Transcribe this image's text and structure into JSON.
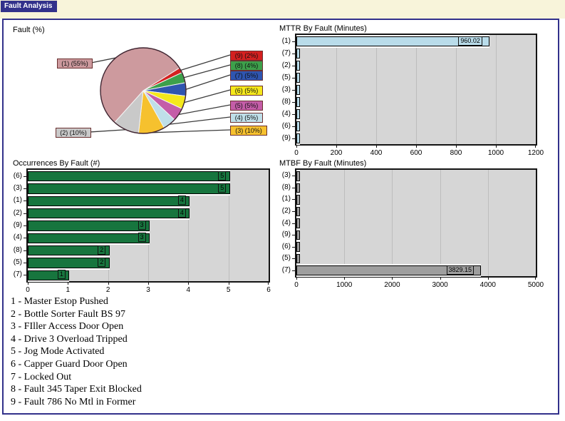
{
  "window": {
    "tab_label": "Fault Analysis"
  },
  "colors": {
    "frame_blue": "#32318b",
    "top_band": "#f8f4da",
    "plot_background": "#d6d6d6",
    "occurrence_bar_green": "#17753e",
    "mttr_bar_blue": "#b9dcea",
    "mtbf_bar_gray": "#9e9e9e"
  },
  "chart_data": [
    {
      "id": "fault-pie",
      "type": "pie",
      "title": "Fault (%)",
      "slices": [
        {
          "fault": "9",
          "label": "(9) (2%)",
          "percent": 2,
          "color": "#d42020"
        },
        {
          "fault": "8",
          "label": "(8) (4%)",
          "percent": 4,
          "color": "#3da04b"
        },
        {
          "fault": "7",
          "label": "(7) (5%)",
          "percent": 5,
          "color": "#2f55b0"
        },
        {
          "fault": "6",
          "label": "(6) (5%)",
          "percent": 5,
          "color": "#f5e81c"
        },
        {
          "fault": "5",
          "label": "(5) (5%)",
          "percent": 5,
          "color": "#c45da8"
        },
        {
          "fault": "4",
          "label": "(4) (5%)",
          "percent": 5,
          "color": "#bfdfe9"
        },
        {
          "fault": "3",
          "label": "(3) (10%)",
          "percent": 10,
          "color": "#f6c12e"
        },
        {
          "fault": "2",
          "label": "(2) (10%)",
          "percent": 10,
          "color": "#c9c9c9"
        },
        {
          "fault": "1",
          "label": "(1) (55%)",
          "percent": 55,
          "color": "#cd9a9e"
        }
      ]
    },
    {
      "id": "mttr",
      "type": "bar",
      "orientation": "horizontal",
      "title": "MTTR By Fault (Minutes)",
      "categories": [
        "(1)",
        "(7)",
        "(2)",
        "(5)",
        "(3)",
        "(8)",
        "(4)",
        "(6)",
        "(9)"
      ],
      "values": [
        960.02,
        0,
        0,
        0,
        0,
        0,
        0,
        0,
        0
      ],
      "value_labels": [
        "960.02",
        "",
        "",
        "",
        "",
        "",
        "",
        "",
        ""
      ],
      "xlim": [
        0,
        1200
      ],
      "xticks": [
        0,
        200,
        400,
        600,
        800,
        1000,
        1200
      ],
      "bar_color": "#b9dcea",
      "grid": true,
      "legend_position": "none"
    },
    {
      "id": "occurrences",
      "type": "bar",
      "orientation": "horizontal",
      "title": "Occurrences By Fault (#)",
      "categories": [
        "(6)",
        "(3)",
        "(1)",
        "(2)",
        "(9)",
        "(4)",
        "(8)",
        "(5)",
        "(7)"
      ],
      "values": [
        5,
        5,
        4,
        4,
        3,
        3,
        2,
        2,
        1
      ],
      "value_labels": [
        "5",
        "5",
        "4",
        "4",
        "3",
        "3",
        "2",
        "2",
        "1"
      ],
      "xlim": [
        0,
        6
      ],
      "xticks": [
        0,
        1,
        2,
        3,
        4,
        5,
        6
      ],
      "bar_color": "#17753e",
      "grid": true,
      "legend_position": "none"
    },
    {
      "id": "mtbf",
      "type": "bar",
      "orientation": "horizontal",
      "title": "MTBF By Fault (Minutes)",
      "categories": [
        "(3)",
        "(8)",
        "(1)",
        "(2)",
        "(4)",
        "(9)",
        "(6)",
        "(5)",
        "(7)"
      ],
      "values": [
        0,
        0,
        0,
        0,
        0,
        0,
        0,
        0,
        3829.15
      ],
      "value_labels": [
        "",
        "",
        "",
        "",
        "",
        "",
        "",
        "",
        "3829.15"
      ],
      "xlim": [
        0,
        5000
      ],
      "xticks": [
        0,
        1000,
        2000,
        3000,
        4000,
        5000
      ],
      "bar_color": "#9e9e9e",
      "grid": true,
      "legend_position": "none"
    }
  ],
  "legend": {
    "items": [
      "1 - Master Estop Pushed",
      "2 - Bottle Sorter Fault BS 97",
      "3 - FIller Access Door Open",
      "4 - Drive 3 Overload Tripped",
      "5 - Jog Mode Activated",
      "6 - Capper Guard Door Open",
      "7 - Locked Out",
      "8 - Fault 345 Taper Exit Blocked",
      "9 - Fault 786 No Mtl in Former"
    ]
  }
}
